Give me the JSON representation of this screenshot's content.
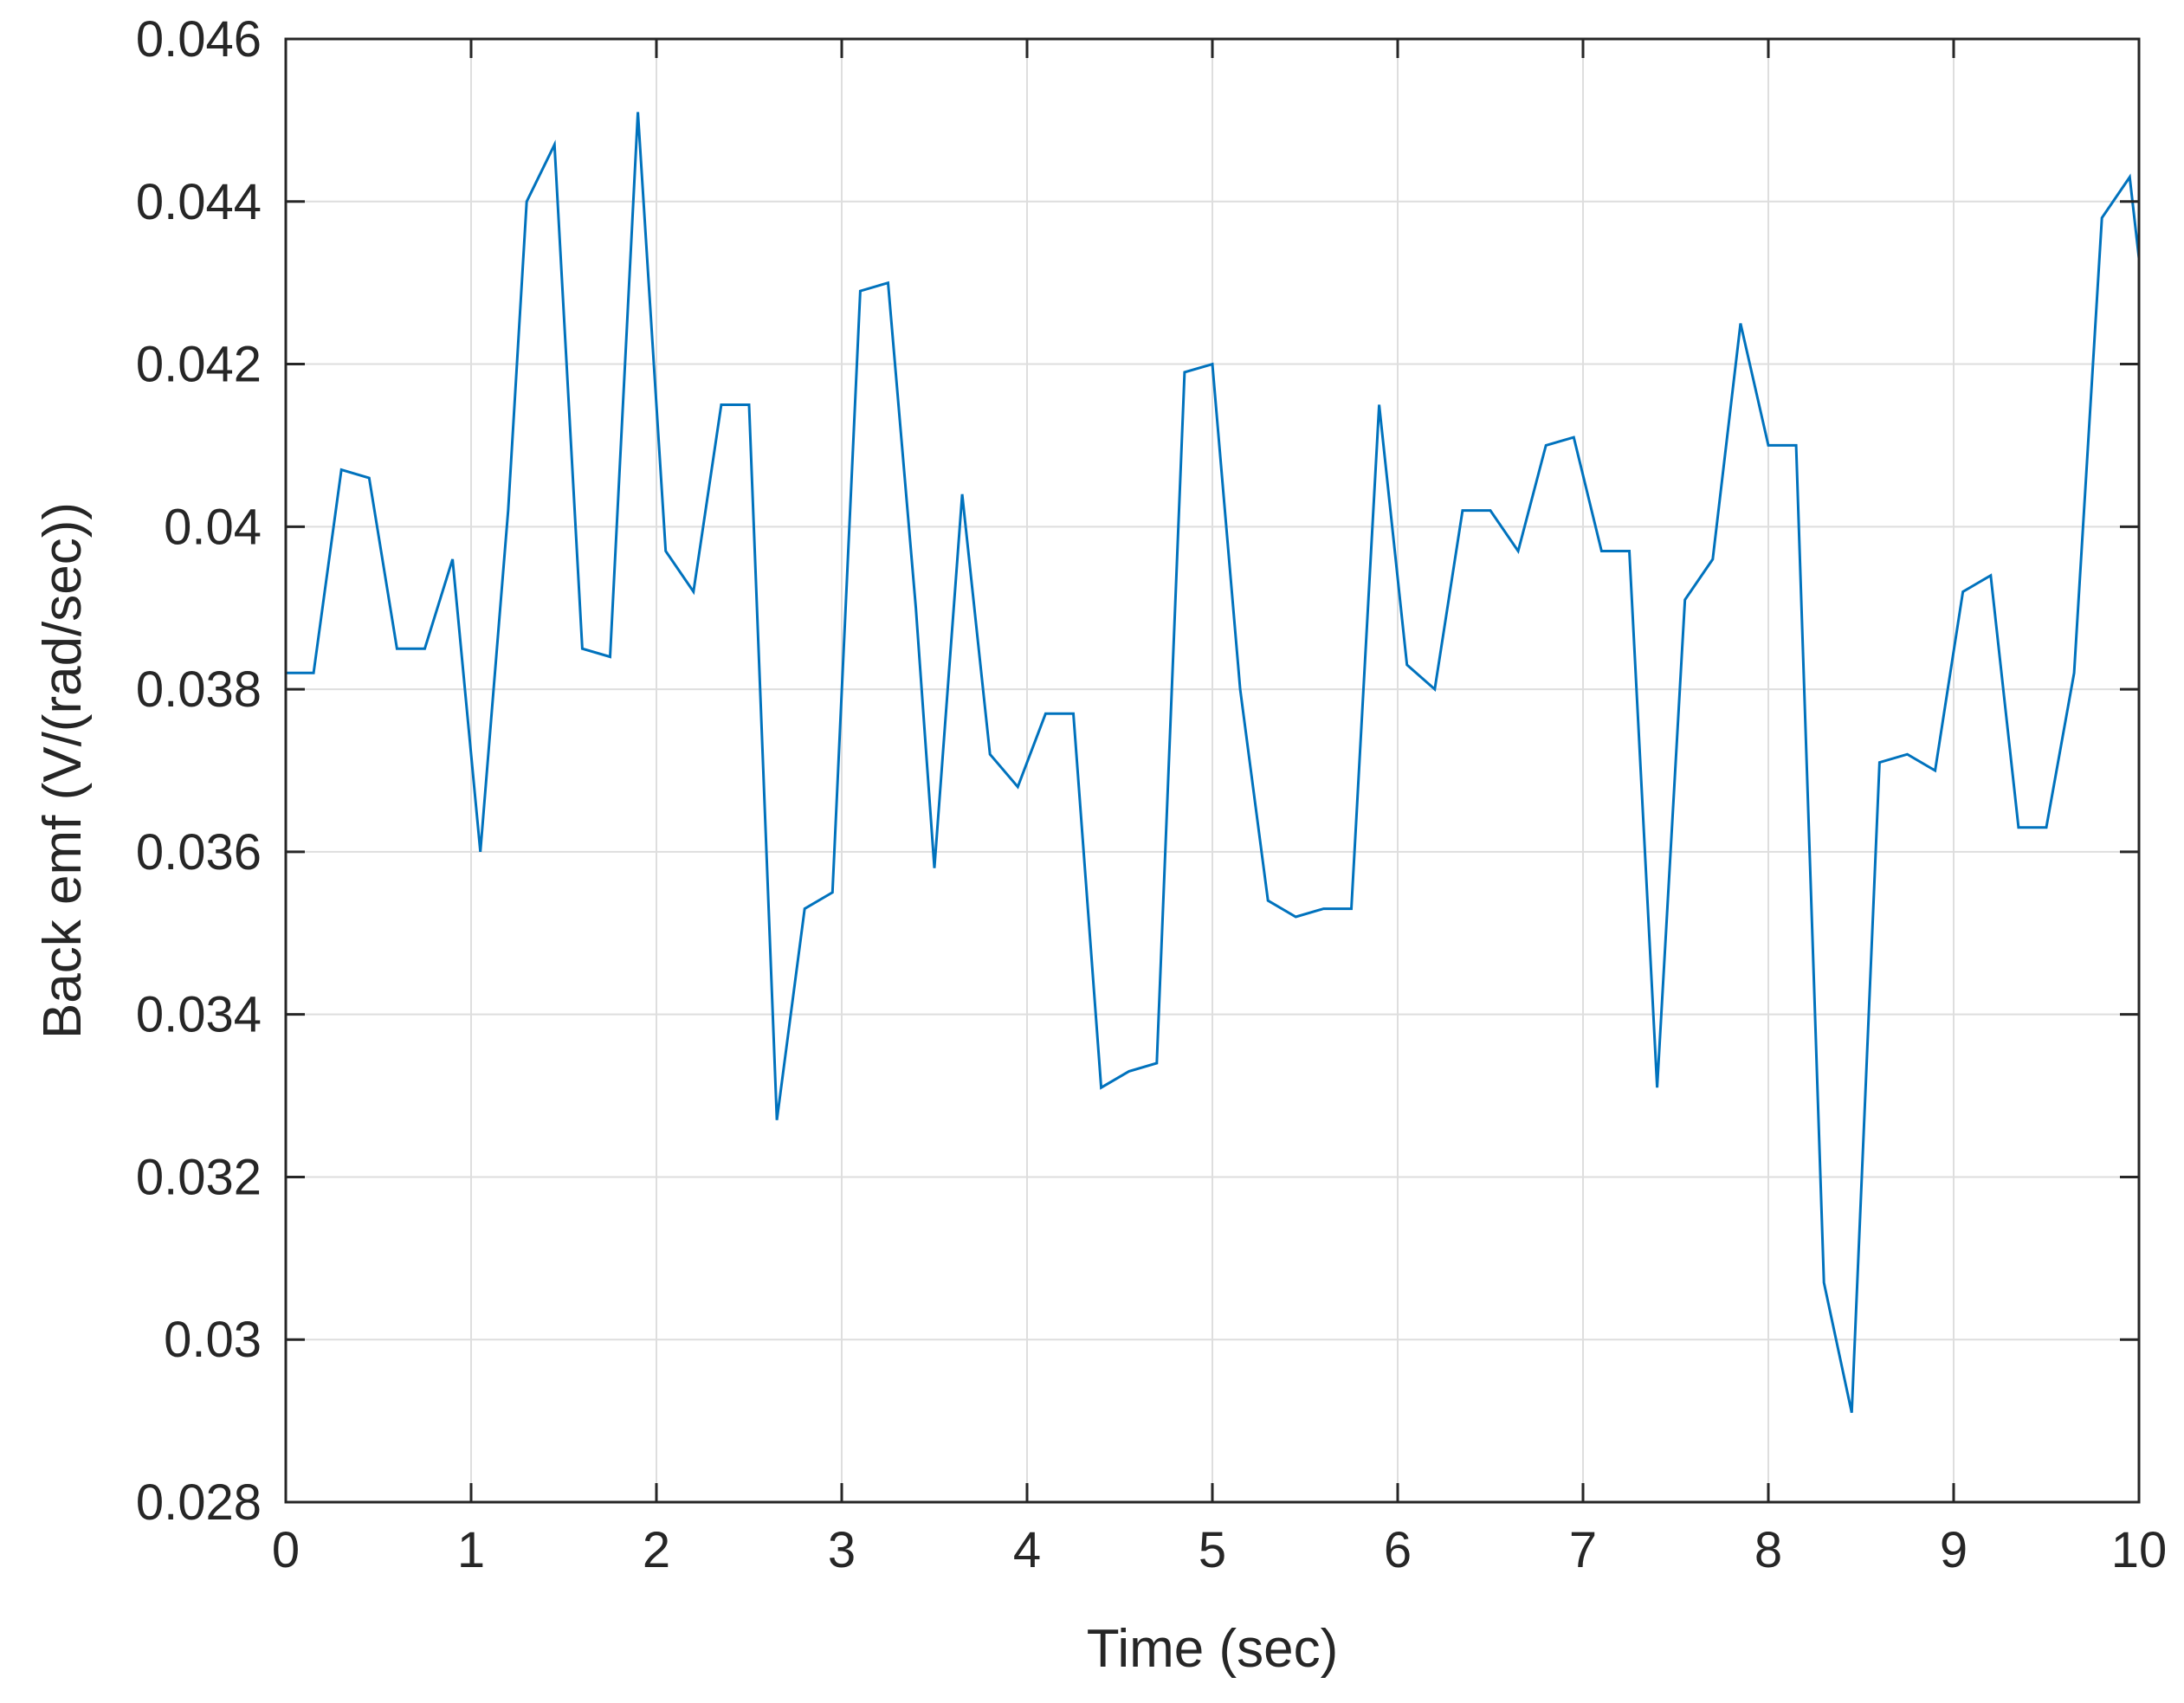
{
  "chart_data": {
    "type": "line",
    "title": "",
    "xlabel": "Time (sec)",
    "ylabel": "Back emf (V/(rad/sec))",
    "xlim": [
      0,
      10
    ],
    "ylim": [
      0.028,
      0.046
    ],
    "x_ticks": [
      0,
      1,
      2,
      3,
      4,
      5,
      6,
      7,
      8,
      9,
      10
    ],
    "x_tick_labels": [
      "0",
      "1",
      "2",
      "3",
      "4",
      "5",
      "6",
      "7",
      "8",
      "9",
      "10"
    ],
    "y_ticks": [
      0.028,
      0.03,
      0.032,
      0.034,
      0.036,
      0.038,
      0.04,
      0.042,
      0.044,
      0.046
    ],
    "y_tick_labels": [
      "0.028",
      "0.03",
      "0.032",
      "0.034",
      "0.036",
      "0.038",
      "0.04",
      "0.042",
      "0.044",
      "0.046"
    ],
    "grid": true,
    "line_color": "#0072BD",
    "series": [
      {
        "x": [
          0,
          0.15,
          0.3,
          0.45,
          0.6,
          0.75,
          0.9,
          1.05,
          1.2,
          1.3,
          1.45,
          1.6,
          1.75,
          1.9,
          2.05,
          2.2,
          2.35,
          2.5,
          2.65,
          2.8,
          2.95,
          3.1,
          3.25,
          3.4,
          3.5,
          3.65,
          3.8,
          3.95,
          4.1,
          4.25,
          4.4,
          4.55,
          4.7,
          4.85,
          5.0,
          5.15,
          5.3,
          5.45,
          5.6,
          5.75,
          5.9,
          6.05,
          6.2,
          6.35,
          6.5,
          6.65,
          6.8,
          6.95,
          7.1,
          7.25,
          7.4,
          7.55,
          7.7,
          7.85,
          8.0,
          8.15,
          8.3,
          8.45,
          8.6,
          8.75,
          8.9,
          9.05,
          9.2,
          9.35,
          9.5,
          9.65,
          9.8,
          9.95,
          10
        ],
        "values": [
          0.0382,
          0.0382,
          0.0407,
          0.0406,
          0.0385,
          0.0385,
          0.0396,
          0.036,
          0.0402,
          0.044,
          0.0447,
          0.0385,
          0.0384,
          0.0451,
          0.0397,
          0.0392,
          0.0415,
          0.0415,
          0.0327,
          0.0353,
          0.0355,
          0.0429,
          0.043,
          0.039,
          0.0358,
          0.0404,
          0.0372,
          0.0368,
          0.0377,
          0.0377,
          0.0331,
          0.0333,
          0.0334,
          0.0419,
          0.042,
          0.038,
          0.0354,
          0.0352,
          0.0353,
          0.0353,
          0.0415,
          0.0383,
          0.038,
          0.0402,
          0.0402,
          0.0397,
          0.041,
          0.0411,
          0.0397,
          0.0397,
          0.0331,
          0.0391,
          0.0396,
          0.0425,
          0.041,
          0.041,
          0.0307,
          0.0291,
          0.0371,
          0.0372,
          0.037,
          0.0392,
          0.0394,
          0.0363,
          0.0363,
          0.0382,
          0.0438,
          0.0443,
          0.0433
        ]
      }
    ]
  }
}
